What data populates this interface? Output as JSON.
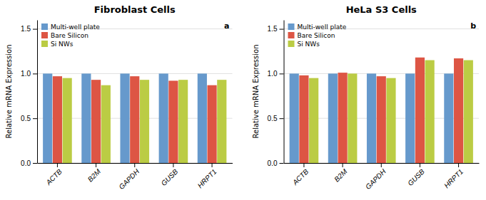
{
  "chart_data": [
    {
      "type": "bar",
      "title": "Fibroblast Cells",
      "categories": [
        "ACTB",
        "B2M",
        "GAPDH",
        "GUSB",
        "HRPT1"
      ],
      "y_label": "Relative mRNA Expression",
      "series": [
        {
          "name": "Multi-well plate",
          "color": "#6699cc",
          "values": [
            1.0,
            1.0,
            1.0,
            1.0,
            1.0
          ]
        },
        {
          "name": "Bare Silicon",
          "color": "#dd5544",
          "values": [
            0.97,
            0.93,
            0.97,
            0.92,
            0.87
          ]
        },
        {
          "name": "Si NWs",
          "color": "#bbcc44",
          "values": [
            0.95,
            0.87,
            0.93,
            0.93,
            0.93
          ]
        }
      ],
      "ylim": [
        0,
        1.6
      ],
      "yticks": [
        {
          "value": 0,
          "label": "0.0"
        },
        {
          "value": 0.5,
          "label": "0.5"
        },
        {
          "value": 1.0,
          "label": "1.0"
        },
        {
          "value": 1.5,
          "label": "1.5"
        }
      ],
      "grid": true,
      "legend": "top-left",
      "annotations": [
        "a"
      ]
    },
    {
      "type": "bar",
      "title": "HeLa S3 Cells",
      "categories": [
        "ACTB",
        "B2M",
        "GAPDH",
        "GUSB",
        "HRPT1"
      ],
      "y_label": "Relative mRNA Expression",
      "series": [
        {
          "name": "Multi-well plate",
          "color": "#6699cc",
          "values": [
            1.0,
            1.0,
            1.0,
            1.0,
            1.0
          ]
        },
        {
          "name": "Bare Silicon",
          "color": "#dd5544",
          "values": [
            0.98,
            1.01,
            0.97,
            1.18,
            1.17
          ]
        },
        {
          "name": "Si NWs",
          "color": "#bbcc44",
          "values": [
            0.95,
            1.0,
            0.95,
            1.15,
            1.15
          ]
        }
      ],
      "ylim": [
        0,
        1.6
      ],
      "yticks": [
        {
          "value": 0,
          "label": "0.0"
        },
        {
          "value": 0.5,
          "label": "0.5"
        },
        {
          "value": 1.0,
          "label": "1.0"
        },
        {
          "value": 1.5,
          "label": "1.5"
        }
      ],
      "grid": true,
      "legend": "top-left",
      "annotations": [
        "b"
      ]
    }
  ]
}
